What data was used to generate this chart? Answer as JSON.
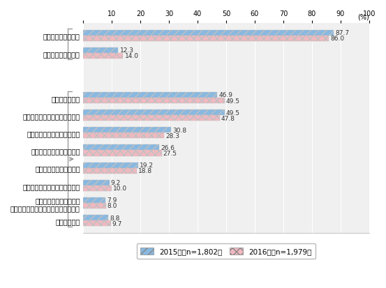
{
  "categories": [
    "何らかの対策を実施",
    "特に実施していない",
    "",
    "社内教育の充実",
    "個人情報保護管理責任者の設置",
    "プライバシーポリシーの策定",
    "必要な個人情報の絞り込み",
    "システムや体制の再構築",
    "プライバシーマーク制度の取得",
    "外注先の選定要件の強化\n（プライバシーマーク取得の有無等）",
    "その他の対策"
  ],
  "values_2015": [
    87.7,
    12.3,
    null,
    46.9,
    49.5,
    30.8,
    26.6,
    19.2,
    9.2,
    7.9,
    8.8
  ],
  "values_2016": [
    86.0,
    14.0,
    null,
    49.5,
    47.8,
    28.3,
    27.5,
    18.8,
    10.0,
    8.0,
    9.7
  ],
  "color_2015": "#89b8e0",
  "color_2016": "#f0b8c0",
  "xlim": [
    0,
    100
  ],
  "xticks": [
    0,
    10,
    20,
    30,
    40,
    50,
    60,
    70,
    80,
    90,
    100
  ],
  "xlabel_unit": "(%)",
  "bar_height": 0.32,
  "legend_2015": "2015年（n=1,802）",
  "legend_2016": "2016年（n=1,979）",
  "bg_color": "#f0f0f0"
}
